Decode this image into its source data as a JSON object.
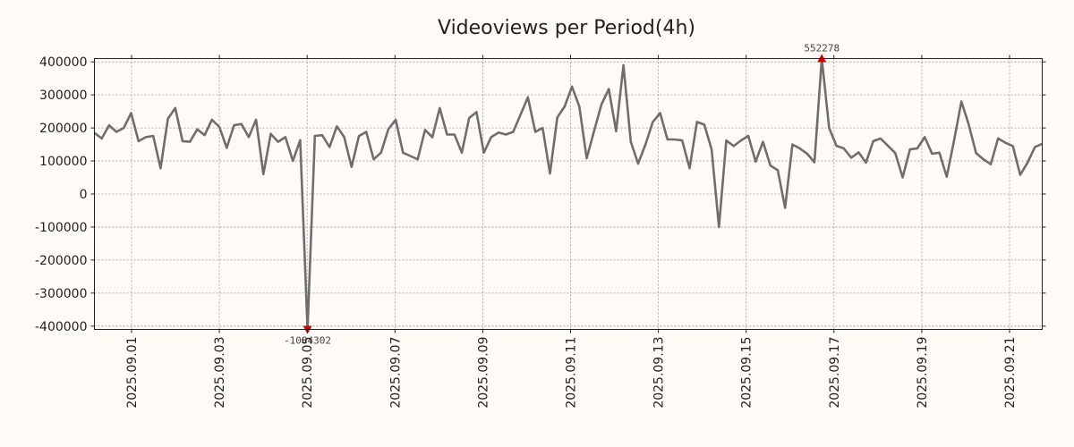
{
  "chart_data": {
    "type": "line",
    "title": "Videoviews per Period(4h)",
    "xlabel": "",
    "ylabel": "",
    "grid": true,
    "line_color": "#6e6e6e",
    "marker_color": "#cc0000",
    "y_display_range": [
      -410000,
      410000
    ],
    "y_ticks": [
      400000,
      300000,
      200000,
      100000,
      0,
      -100000,
      -200000,
      -300000,
      -400000
    ],
    "y_tick_labels": [
      "400000",
      "300000",
      "200000",
      "100000",
      "0",
      "-100000",
      "-200000",
      "-300000",
      "-400000"
    ],
    "x_tick_labels": [
      "2025.09.01",
      "2025.09.03",
      "2025.09.05",
      "2025.09.07",
      "2025.09.09",
      "2025.09.11",
      "2025.09.13",
      "2025.09.15",
      "2025.09.17",
      "2025.09.19",
      "2025.09.21"
    ],
    "max_annotation": "552278",
    "min_annotation": "-1084302",
    "series": [
      {
        "values": [
          185000,
          168000,
          208000,
          188000,
          200000,
          245000,
          160000,
          172000,
          176000,
          78000,
          228000,
          260000,
          160000,
          158000,
          196000,
          178000,
          225000,
          203000,
          140000,
          208000,
          212000,
          172000,
          225000,
          60000,
          182000,
          158000,
          172000,
          100000,
          163000,
          -1084302,
          176000,
          178000,
          142000,
          205000,
          172000,
          82000,
          175000,
          188000,
          105000,
          125000,
          196000,
          225000,
          125000,
          115000,
          105000,
          194000,
          172000,
          260000,
          180000,
          180000,
          125000,
          230000,
          248000,
          125000,
          172000,
          186000,
          180000,
          188000,
          240000,
          293000,
          188000,
          200000,
          62000,
          232000,
          265000,
          325000,
          265000,
          108000,
          190000,
          270000,
          318000,
          190000,
          390000,
          158000,
          92000,
          150000,
          218000,
          245000,
          165000,
          165000,
          162000,
          78000,
          218000,
          210000,
          135000,
          -100000,
          162000,
          145000,
          162000,
          176000,
          98000,
          158000,
          86000,
          72000,
          -42000,
          150000,
          138000,
          122000,
          96000,
          552278,
          200000,
          146000,
          138000,
          110000,
          126000,
          95000,
          160000,
          168000,
          146000,
          124000,
          50000,
          135000,
          138000,
          172000,
          122000,
          125000,
          52000,
          162000,
          280000,
          210000,
          124000,
          105000,
          90000,
          168000,
          155000,
          145000,
          58000,
          95000,
          142000,
          152000
        ]
      }
    ]
  }
}
